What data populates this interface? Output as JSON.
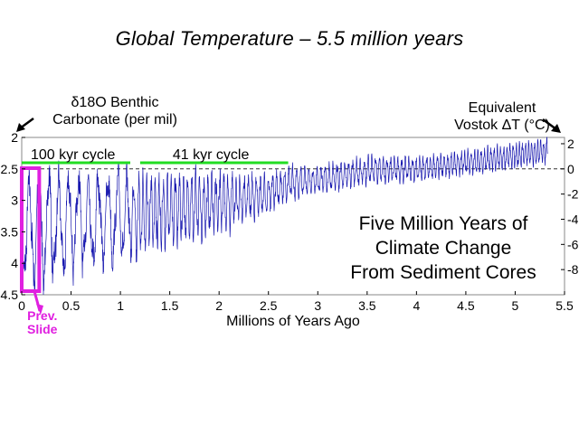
{
  "slide": {
    "title": "Global Temperature – 5.5 million years",
    "overlay_lines": [
      "Five Million Years of",
      "Climate Change",
      "From Sediment Cores"
    ],
    "prev_slide_lines": [
      "Prev.",
      "Slide"
    ]
  },
  "chart_data": {
    "type": "line",
    "title": "",
    "xlabel": "Millions of Years Ago",
    "ylabel_lines": [
      "δ18O Benthic",
      "Carbonate (per mil)"
    ],
    "y2label_lines": [
      "Equivalent",
      "Vostok ΔT (°C)"
    ],
    "xlim": [
      0,
      5.5
    ],
    "ylim": [
      2,
      4.5
    ],
    "y_inverted": true,
    "x_ticks": [
      "0",
      "0.5",
      "1",
      "1.5",
      "2",
      "2.5",
      "3",
      "3.5",
      "4",
      "4.5",
      "5",
      "5.5"
    ],
    "y_ticks": [
      "2",
      "2.5",
      "3",
      "3.5",
      "4",
      "4.5"
    ],
    "y2_ticks": [
      "2",
      "0",
      "-2",
      "-4",
      "-6",
      "-8"
    ],
    "y2_tick_positions_d18o": [
      2.1,
      2.5,
      2.9,
      3.3,
      3.7,
      4.1
    ],
    "series_color": "#1a1ab0",
    "reference_line": {
      "y": 2.5,
      "style": "dashed"
    },
    "cycle_annotations": [
      {
        "label": "100 kyr cycle",
        "x_start": 0.0,
        "x_end": 1.1,
        "color": "#22dd22"
      },
      {
        "label": "41 kyr cycle",
        "x_start": 1.2,
        "x_end": 2.7,
        "color": "#22dd22"
      }
    ],
    "highlight_box": {
      "x_start": 0.0,
      "x_end": 0.15,
      "color": "#e020e0"
    },
    "envelope": {
      "x": [
        0.0,
        0.1,
        0.5,
        1.0,
        1.5,
        2.0,
        2.5,
        2.7,
        3.0,
        3.5,
        4.0,
        4.5,
        5.0,
        5.33
      ],
      "warm": [
        2.55,
        2.45,
        2.5,
        2.55,
        2.55,
        2.55,
        2.6,
        2.45,
        2.45,
        2.3,
        2.3,
        2.2,
        2.1,
        2.0
      ],
      "cold": [
        4.3,
        4.5,
        4.2,
        4.0,
        3.75,
        3.55,
        3.2,
        3.0,
        2.9,
        2.75,
        2.7,
        2.6,
        2.5,
        2.4
      ]
    },
    "period_breakpoints": {
      "x": [
        0.0,
        1.0,
        1.2,
        3.0,
        5.33
      ],
      "period_myr": [
        0.1,
        0.1,
        0.041,
        0.041,
        0.03
      ]
    },
    "x_end": 5.33
  }
}
